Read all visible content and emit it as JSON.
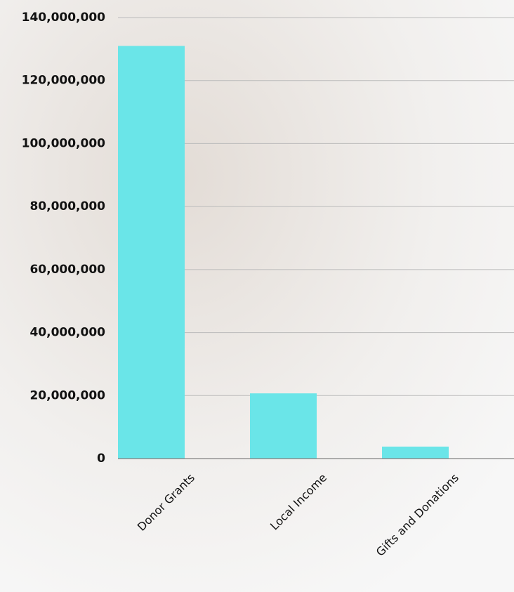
{
  "chart_data": {
    "type": "bar",
    "categories": [
      "Donor Grants",
      "Local Income",
      "Gifts and Donations"
    ],
    "values": [
      131000000,
      20700000,
      3800000
    ],
    "color": "#6ae5e8",
    "ylim": [
      0,
      140000000
    ],
    "yticks": [
      0,
      {
        "value": 20000000,
        "label": "20,000,000"
      },
      {
        "value": 40000000,
        "label": "40,000,000"
      },
      {
        "value": 60000000,
        "label": "60,000,000"
      },
      {
        "value": 80000000,
        "label": "80,000,000"
      },
      {
        "value": 100000000,
        "label": "100,000,000"
      },
      {
        "value": 120000000,
        "label": "120,000,000"
      },
      {
        "value": 140000000,
        "label": "140,000,000"
      }
    ],
    "grid": true
  }
}
